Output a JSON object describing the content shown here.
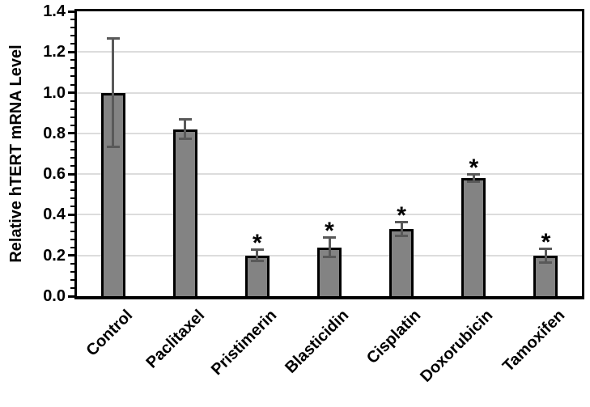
{
  "figure": {
    "background": "#ffffff",
    "colors": {
      "bar_fill": "#838383",
      "bar_border": "#000000",
      "error_bar": "#595959",
      "gridline": "#dcdcdc",
      "axis": "#000000",
      "text": "#000000"
    }
  },
  "chart_data": {
    "type": "bar",
    "title": "",
    "ylabel": "Relative hTERT mRNA Level",
    "xlabel": "",
    "ylim": [
      0,
      1.4
    ],
    "ytick_interval": 0.2,
    "yminor_interval": 0.04,
    "ytick_labels": [
      "0.0",
      "0.2",
      "0.4",
      "0.6",
      "0.8",
      "1.0",
      "1.2",
      "1.4"
    ],
    "grid": true,
    "legend_position": "none",
    "categories": [
      "Control",
      "Paclitaxel",
      "Pristimerin",
      "Blasticidin",
      "Cisplatin",
      "Doxorubicin",
      "Tamoxifen"
    ],
    "values": [
      1.0,
      0.82,
      0.2,
      0.24,
      0.33,
      0.58,
      0.2
    ],
    "errors": [
      0.27,
      0.05,
      0.03,
      0.05,
      0.035,
      0.02,
      0.035
    ],
    "significance": [
      "",
      "",
      "*",
      "*",
      "*",
      "*",
      "*"
    ]
  }
}
